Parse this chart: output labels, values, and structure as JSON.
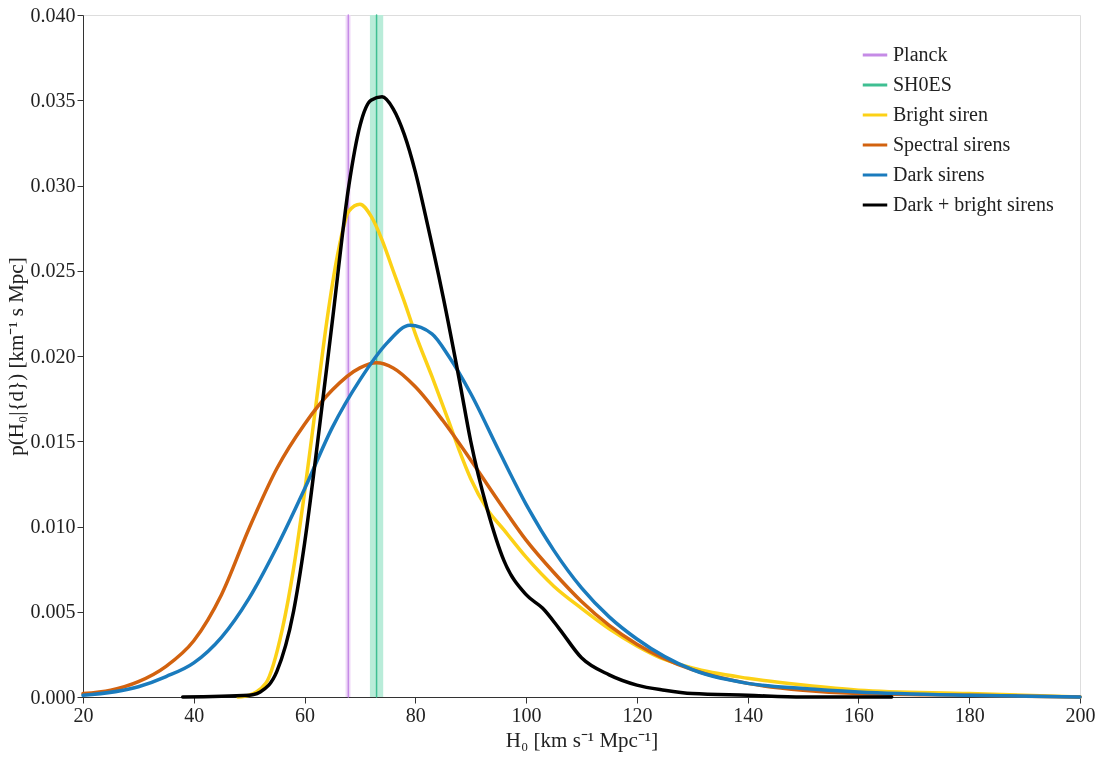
{
  "chart_data": {
    "type": "line",
    "xlabel": "H₀ [km s⁻¹ Mpc⁻¹]",
    "ylabel": "p(H₀|{d}) [km⁻¹ s Mpc]",
    "xlim": [
      20,
      200
    ],
    "xticks": [
      20,
      40,
      60,
      80,
      100,
      120,
      140,
      160,
      180,
      200
    ],
    "ylim": [
      0,
      0.04
    ],
    "yticks": [
      {
        "value": 0,
        "label": "0.000"
      },
      {
        "value": 0.005,
        "label": "0.005"
      },
      {
        "value": 0.01,
        "label": "0.010"
      },
      {
        "value": 0.015,
        "label": "0.015"
      },
      {
        "value": 0.02,
        "label": "0.020"
      },
      {
        "value": 0.025,
        "label": "0.025"
      },
      {
        "value": 0.03,
        "label": "0.030"
      },
      {
        "value": 0.035,
        "label": "0.035"
      },
      {
        "value": 0.04,
        "label": "0.040"
      }
    ],
    "grid": false,
    "legend": "top right",
    "bands": [
      {
        "axis": "x",
        "from": 67.4,
        "to": 68.3,
        "color": "#efd9f8"
      },
      {
        "axis": "x",
        "from": 71.8,
        "to": 74.2,
        "color": "#b9ecd9"
      }
    ],
    "series": [
      {
        "name": "Planck",
        "color": "#c58be6",
        "x": [
          67.9,
          67.9
        ],
        "values": [
          0,
          0.04
        ]
      },
      {
        "name": "SH0ES",
        "color": "#3fbf92",
        "x": [
          73.0,
          73.0
        ],
        "values": [
          0,
          0.04
        ]
      },
      {
        "name": "Bright siren",
        "color": "#fcd116",
        "x": [
          48,
          50,
          53,
          56,
          58,
          60,
          62,
          64,
          66,
          68,
          70,
          72,
          74,
          76,
          78,
          80,
          83,
          86,
          88,
          90,
          93,
          96,
          100,
          105,
          110,
          115,
          120,
          125,
          130,
          140,
          150,
          160,
          180,
          200
        ],
        "values": [
          0,
          0.0001,
          0.0008,
          0.004,
          0.0075,
          0.012,
          0.017,
          0.022,
          0.026,
          0.0285,
          0.0289,
          0.0282,
          0.0268,
          0.025,
          0.0232,
          0.0213,
          0.0188,
          0.0162,
          0.0144,
          0.0128,
          0.011,
          0.0098,
          0.0082,
          0.0065,
          0.0052,
          0.004,
          0.003,
          0.0022,
          0.0017,
          0.0011,
          0.0007,
          0.0004,
          0.0002,
          0
        ]
      },
      {
        "name": "Spectral sirens",
        "color": "#d2620f",
        "x": [
          20,
          25,
          30,
          35,
          40,
          45,
          50,
          55,
          60,
          65,
          70,
          73,
          76,
          80,
          85,
          90,
          95,
          100,
          105,
          110,
          115,
          120,
          130,
          140,
          150,
          160,
          180,
          200
        ],
        "values": [
          0.0002,
          0.0004,
          0.0009,
          0.0018,
          0.0033,
          0.006,
          0.0099,
          0.0134,
          0.016,
          0.018,
          0.0193,
          0.0196,
          0.0193,
          0.0182,
          0.0162,
          0.0139,
          0.0115,
          0.0092,
          0.0073,
          0.0056,
          0.0042,
          0.0031,
          0.0016,
          0.0008,
          0.0004,
          0.0002,
          0.0001,
          0
        ]
      },
      {
        "name": "Dark sirens",
        "color": "#1a7bbd",
        "x": [
          20,
          30,
          35,
          40,
          45,
          50,
          55,
          60,
          65,
          70,
          75,
          79,
          83,
          86,
          90,
          95,
          100,
          105,
          110,
          115,
          120,
          130,
          140,
          150,
          160,
          180,
          200
        ],
        "values": [
          0.0001,
          0.0006,
          0.0012,
          0.002,
          0.0035,
          0.0058,
          0.0088,
          0.0122,
          0.0158,
          0.0186,
          0.0208,
          0.0218,
          0.0213,
          0.02,
          0.0178,
          0.0145,
          0.0113,
          0.0086,
          0.0064,
          0.0047,
          0.0034,
          0.0016,
          0.0008,
          0.0005,
          0.0003,
          0.0001,
          0
        ]
      },
      {
        "name": "Dark + bright sirens",
        "color": "#000000",
        "x": [
          38,
          50,
          52,
          55,
          58,
          60,
          62,
          65,
          68,
          70,
          72,
          74,
          76,
          78,
          80,
          82,
          85,
          88,
          90,
          93,
          96,
          100,
          103,
          106,
          110,
          115,
          120,
          125,
          130,
          140,
          150,
          166
        ],
        "values": [
          0,
          0.0001,
          0.0003,
          0.0015,
          0.005,
          0.009,
          0.014,
          0.022,
          0.03,
          0.0335,
          0.035,
          0.0352,
          0.0345,
          0.033,
          0.0308,
          0.028,
          0.0235,
          0.0185,
          0.015,
          0.011,
          0.008,
          0.006,
          0.0052,
          0.004,
          0.0023,
          0.0013,
          0.0007,
          0.0004,
          0.0002,
          0.0001,
          0,
          0
        ]
      }
    ]
  }
}
